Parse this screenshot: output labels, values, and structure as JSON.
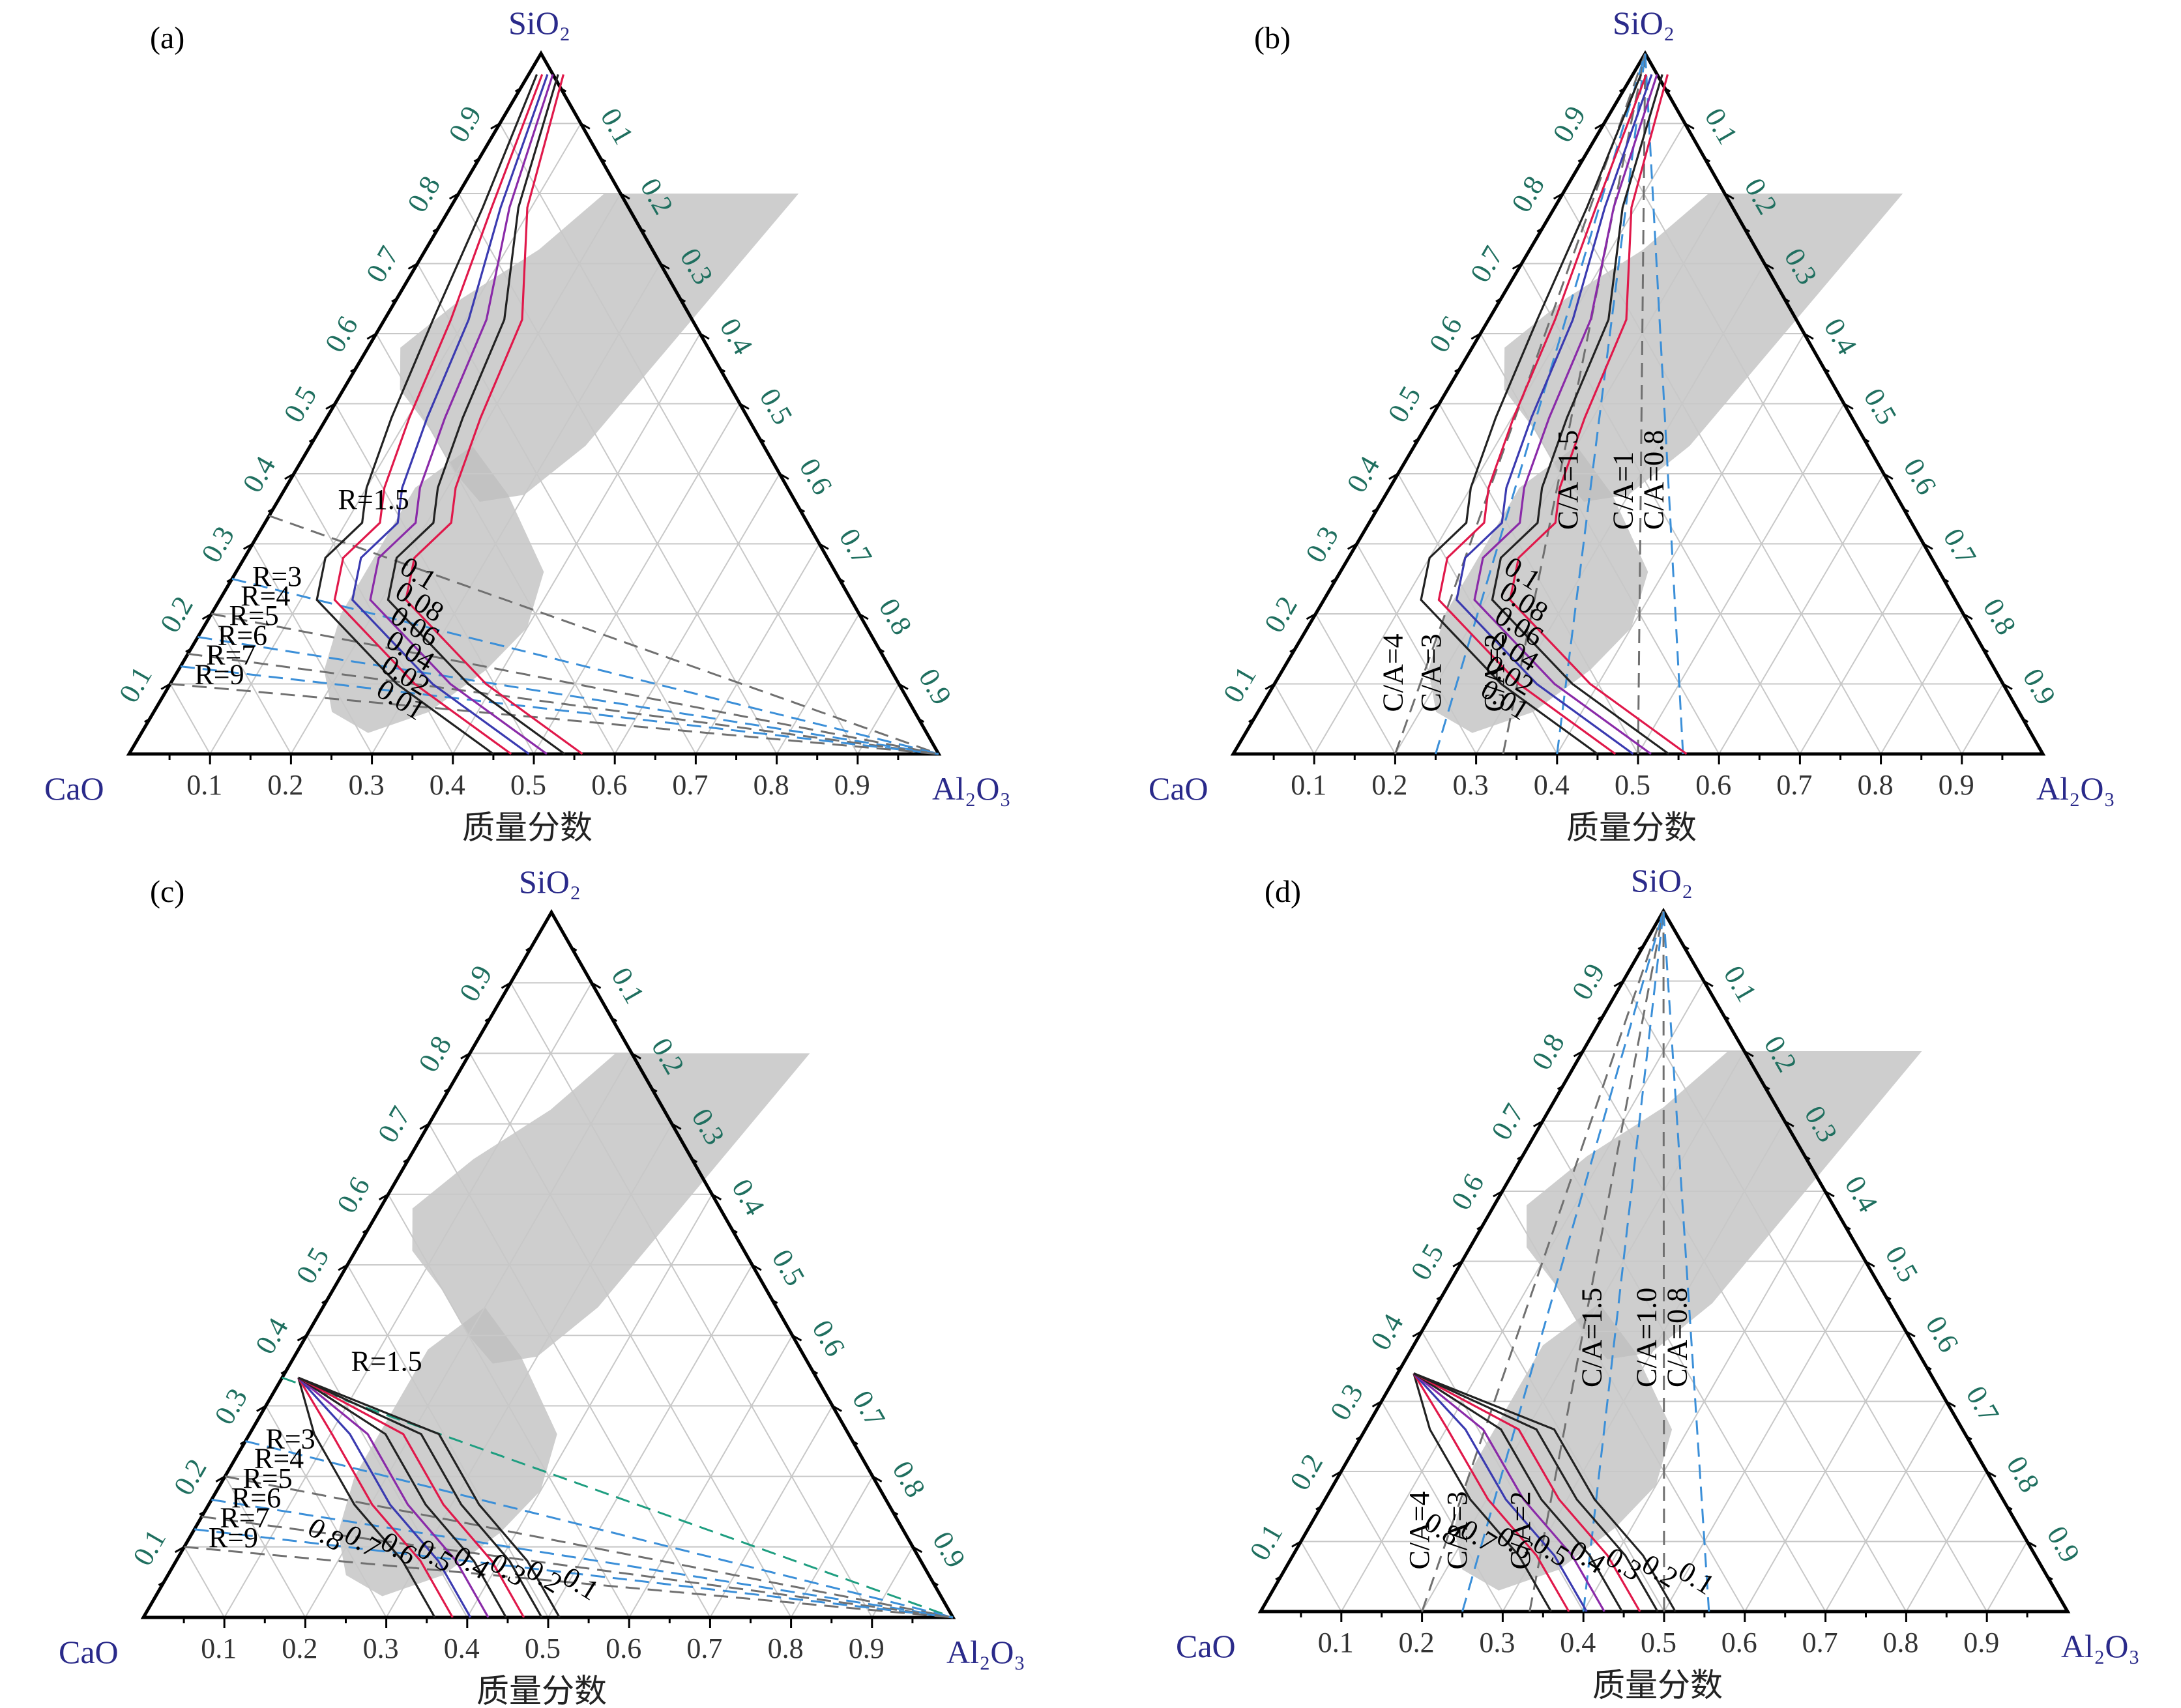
{
  "figure": {
    "axis_label": "质量分数",
    "vertex_labels": {
      "top": "SiO₂",
      "left": "CaO",
      "right": "Al₂O₃"
    },
    "tick_values": [
      "0.1",
      "0.2",
      "0.3",
      "0.4",
      "0.5",
      "0.6",
      "0.7",
      "0.8",
      "0.9"
    ],
    "bottom_tick_values": [
      "0.9",
      "0.8",
      "0.7",
      "0.6",
      "0.5",
      "0.4",
      "0.3",
      "0.2",
      "0.1"
    ]
  },
  "panels": [
    {
      "label": "(a)",
      "contour_labels": [
        "0.1",
        "0.08",
        "0.06",
        "0.04",
        "0.02",
        "0.01"
      ],
      "ratio_labels": [
        "R=1.5",
        "R=3",
        "R=4",
        "R=5",
        "R=6",
        "R=7",
        "R=9"
      ],
      "ca_labels": []
    },
    {
      "label": "(b)",
      "contour_labels": [
        "0.1",
        "0.08",
        "0.06",
        "0.04",
        "0.02",
        "0.01"
      ],
      "ratio_labels": [],
      "ca_labels": [
        "C/A=4",
        "C/A=3",
        "C/A=2",
        "C/A=1.5",
        "C/A=1",
        "C/A=0.8"
      ]
    },
    {
      "label": "(c)",
      "contour_labels": [
        "0.8",
        "0.7",
        "0.6",
        "0.5",
        "0.4",
        "0.3",
        "0.2",
        "0.1"
      ],
      "ratio_labels": [
        "R=1.5",
        "R=3",
        "R=4",
        "R=5",
        "R=6",
        "R=7",
        "R=9"
      ],
      "ca_labels": []
    },
    {
      "label": "(d)",
      "contour_labels": [
        "0.8",
        "0.7",
        "0.6",
        "0.5",
        "0.4",
        "0.3",
        "0.2",
        "0.1"
      ],
      "ratio_labels": [],
      "ca_labels": [
        "C/A=4",
        "C/A=3",
        "C/A=2",
        "C/A=1.5",
        "C/A=1.0",
        "C/A=0.8"
      ]
    }
  ],
  "colors": {
    "axis": "#000000",
    "grid": "#c8c8c8",
    "region": "#bdbdbd",
    "contour_black": "#222222",
    "contour_red": "#e0184a",
    "contour_blue": "#3a3ab0",
    "contour_purple": "#8a2aa8",
    "dash_grey": "#707070",
    "dash_blue": "#3b8fd8",
    "dash_green": "#1e9e80",
    "tick_green": "#1f6f5f",
    "tick_grey": "#333333",
    "vertex_label": "#2a2a8a"
  }
}
